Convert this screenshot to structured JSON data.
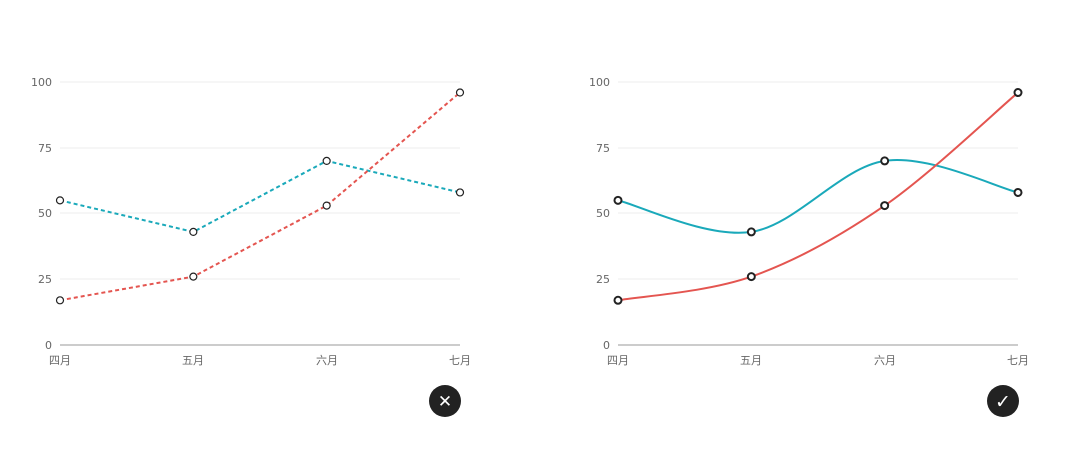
{
  "chart_data": [
    {
      "type": "line",
      "style": "dashed",
      "categories": [
        "四月",
        "五月",
        "六月",
        "七月"
      ],
      "series": [
        {
          "color": "#1aa9ba",
          "values": [
            55,
            43,
            70,
            58
          ]
        },
        {
          "color": "#e45550",
          "values": [
            17,
            26,
            53,
            96
          ]
        }
      ],
      "yticks": [
        "0",
        "25",
        "50",
        "75",
        "100"
      ],
      "ylim": [
        0,
        100
      ],
      "grid": true,
      "badge": {
        "icon": "close-icon",
        "glyph": "✕",
        "color": "#222222"
      }
    },
    {
      "type": "line",
      "style": "smooth",
      "categories": [
        "四月",
        "五月",
        "六月",
        "七月"
      ],
      "series": [
        {
          "color": "#1aa9ba",
          "values": [
            55,
            43,
            70,
            58
          ]
        },
        {
          "color": "#e45550",
          "values": [
            17,
            26,
            53,
            96
          ]
        }
      ],
      "yticks": [
        "0",
        "25",
        "50",
        "75",
        "100"
      ],
      "ylim": [
        0,
        100
      ],
      "grid": true,
      "badge": {
        "icon": "check-icon",
        "glyph": "✓",
        "color": "#222222"
      }
    }
  ]
}
